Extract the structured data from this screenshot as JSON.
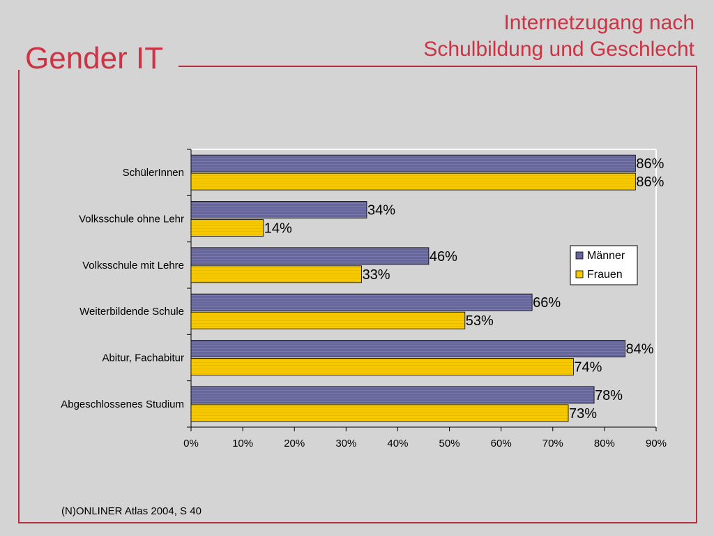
{
  "slide": {
    "title": "Gender IT",
    "subtitle_line1": "Internetzugang nach",
    "subtitle_line2": "Schulbildung und Geschlecht",
    "source": "(N)ONLINER Atlas 2004, S 40"
  },
  "colors": {
    "accent": "#cc3344",
    "maenner": "#66669a",
    "frauen": "#f5c800",
    "background": "#d4d4d4"
  },
  "chart_data": {
    "type": "bar",
    "orientation": "horizontal",
    "categories": [
      "SchülerInnen",
      "Volksschule ohne Lehr",
      "Volksschule mit Lehre",
      "Weiterbildende Schule",
      "Abitur, Fachabitur",
      "Abgeschlossenes Studium"
    ],
    "series": [
      {
        "name": "Männer",
        "values": [
          86,
          34,
          46,
          66,
          84,
          78
        ]
      },
      {
        "name": "Frauen",
        "values": [
          86,
          14,
          33,
          53,
          74,
          73
        ]
      }
    ],
    "value_labels": {
      "Männer": [
        "86%",
        "34%",
        "46%",
        "66%",
        "84%",
        "78%"
      ],
      "Frauen": [
        "86%",
        "14%",
        "33%",
        "53%",
        "74%",
        "73%"
      ]
    },
    "xlim": [
      0,
      90
    ],
    "xticks": [
      "0%",
      "10%",
      "20%",
      "30%",
      "40%",
      "50%",
      "60%",
      "70%",
      "80%",
      "90%"
    ],
    "legend": [
      "Männer",
      "Frauen"
    ],
    "legend_position": "right"
  }
}
